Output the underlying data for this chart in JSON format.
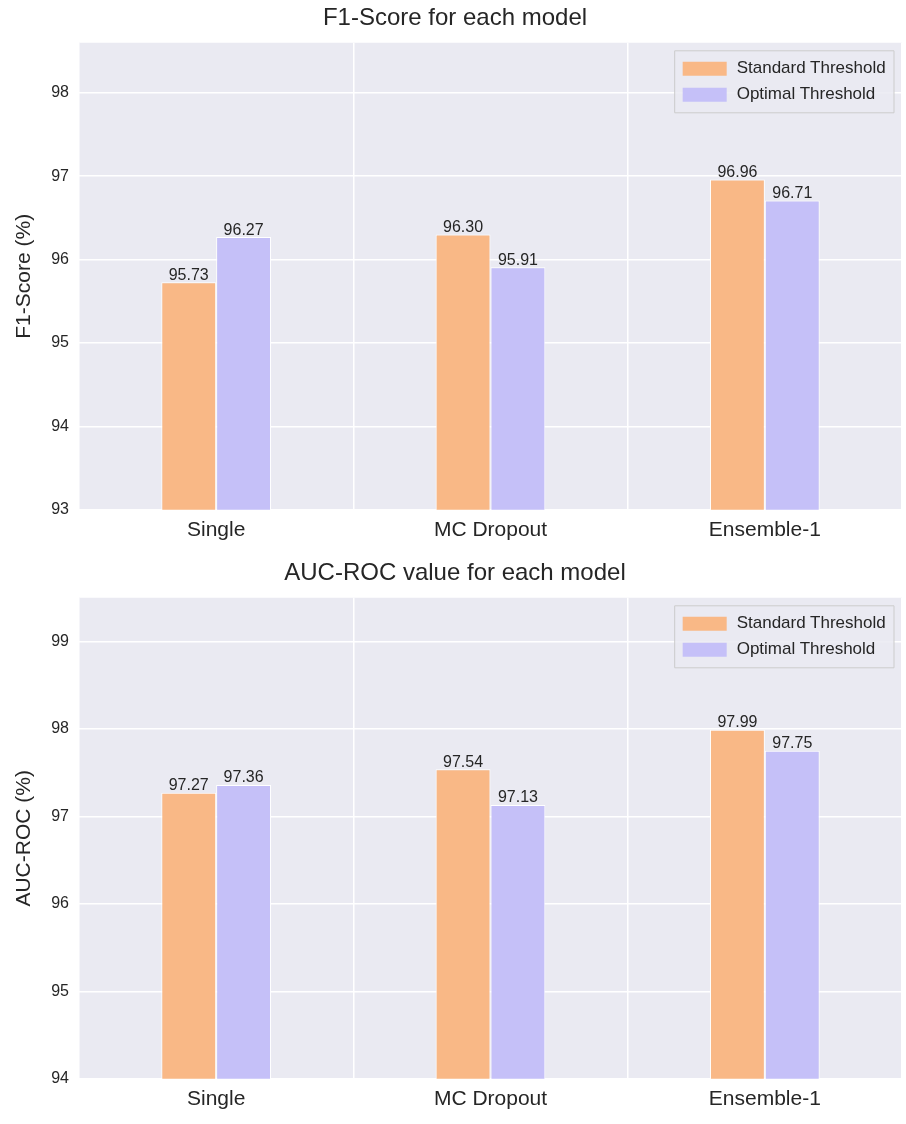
{
  "chart_data": [
    {
      "type": "bar",
      "title": "F1-Score for each model",
      "ylabel": "F1-Score (%)",
      "categories": [
        "Single",
        "MC Dropout",
        "Ensemble-1"
      ],
      "series": [
        {
          "name": "Standard Threshold",
          "color": "#f9b886",
          "values": [
            95.73,
            96.3,
            96.96
          ],
          "value_labels": [
            "95.73",
            "96.30",
            "96.96"
          ]
        },
        {
          "name": "Optimal Threshold",
          "color": "#c5c0f8",
          "values": [
            96.27,
            95.91,
            96.71
          ],
          "value_labels": [
            "96.27",
            "95.91",
            "96.71"
          ]
        }
      ],
      "ylim": [
        93,
        98.6
      ],
      "yticks": [
        93,
        94,
        95,
        96,
        97,
        98
      ],
      "grid": true,
      "legend": "top right"
    },
    {
      "type": "bar",
      "title": "AUC-ROC value for each model",
      "ylabel": "AUC-ROC (%)",
      "categories": [
        "Single",
        "MC Dropout",
        "Ensemble-1"
      ],
      "series": [
        {
          "name": "Standard Threshold",
          "color": "#f9b886",
          "values": [
            97.27,
            97.54,
            97.99
          ],
          "value_labels": [
            "97.27",
            "97.54",
            "97.99"
          ]
        },
        {
          "name": "Optimal Threshold",
          "color": "#c5c0f8",
          "values": [
            97.36,
            97.13,
            97.75
          ],
          "value_labels": [
            "97.36",
            "97.13",
            "97.75"
          ]
        }
      ],
      "ylim": [
        94,
        99.5
      ],
      "yticks": [
        94,
        95,
        96,
        97,
        98,
        99
      ],
      "grid": true,
      "legend": "top right"
    }
  ]
}
